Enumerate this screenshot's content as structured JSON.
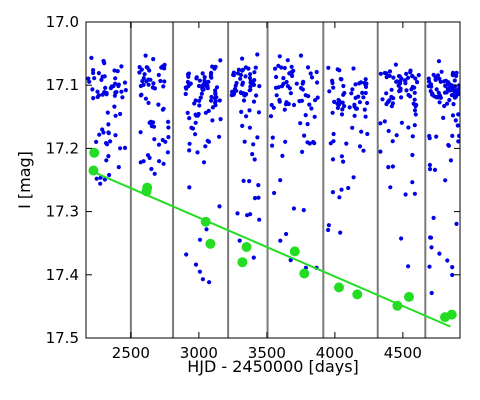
{
  "chart_data": {
    "type": "scatter",
    "xlabel": "HJD - 2450000 [days]",
    "ylabel": "I [mag]",
    "xlim": [
      2170,
      4920
    ],
    "ylim": [
      17.5,
      17.0
    ],
    "y_inverted": true,
    "grid": false,
    "legend": "none",
    "x_ticks": [
      2500,
      3000,
      3500,
      4000,
      4500
    ],
    "x_tick_labels": [
      "2500",
      "3000",
      "3500",
      "4000",
      "4500"
    ],
    "y_ticks": [
      17.0,
      17.1,
      17.2,
      17.3,
      17.4,
      17.5
    ],
    "y_tick_labels": [
      "17.0",
      "17.1",
      "17.2",
      "17.3",
      "17.4",
      "17.5"
    ],
    "season_boundaries": [
      2500,
      2810,
      3215,
      3505,
      3915,
      4315,
      4665
    ],
    "colors": {
      "photometry": "#0000e6",
      "minima": "#22dd22",
      "trend": "#22dd22",
      "boundary": "#7a7a7a"
    },
    "seasons": [
      {
        "x_start": 2185,
        "x_end": 2470,
        "n_points": 65,
        "core_min": 17.07,
        "core_max": 17.12,
        "tail_max": 17.26
      },
      {
        "x_start": 2560,
        "x_end": 2780,
        "n_points": 60,
        "core_min": 17.07,
        "core_max": 17.12,
        "tail_max": 17.25
      },
      {
        "x_start": 2900,
        "x_end": 3160,
        "n_points": 85,
        "core_min": 17.08,
        "core_max": 17.13,
        "tail_max": 17.43
      },
      {
        "x_start": 3240,
        "x_end": 3450,
        "n_points": 70,
        "core_min": 17.07,
        "core_max": 17.12,
        "tail_max": 17.38
      },
      {
        "x_start": 3530,
        "x_end": 3880,
        "n_points": 75,
        "core_min": 17.07,
        "core_max": 17.13,
        "tail_max": 17.45
      },
      {
        "x_start": 3950,
        "x_end": 4240,
        "n_points": 70,
        "core_min": 17.09,
        "core_max": 17.14,
        "tail_max": 17.35
      },
      {
        "x_start": 4330,
        "x_end": 4620,
        "n_points": 75,
        "core_min": 17.08,
        "core_max": 17.13,
        "tail_max": 17.44
      },
      {
        "x_start": 4690,
        "x_end": 4915,
        "n_points": 95,
        "core_min": 17.08,
        "core_max": 17.12,
        "tail_max": 17.44
      }
    ],
    "minima": [
      {
        "x": 2230,
        "y": 17.207
      },
      {
        "x": 2225,
        "y": 17.235
      },
      {
        "x": 2620,
        "y": 17.262
      },
      {
        "x": 2615,
        "y": 17.268
      },
      {
        "x": 3050,
        "y": 17.316
      },
      {
        "x": 3085,
        "y": 17.351
      },
      {
        "x": 3320,
        "y": 17.38
      },
      {
        "x": 3350,
        "y": 17.356
      },
      {
        "x": 3705,
        "y": 17.363
      },
      {
        "x": 3775,
        "y": 17.398
      },
      {
        "x": 4030,
        "y": 17.42
      },
      {
        "x": 4165,
        "y": 17.431
      },
      {
        "x": 4460,
        "y": 17.449
      },
      {
        "x": 4545,
        "y": 17.435
      },
      {
        "x": 4810,
        "y": 17.467
      },
      {
        "x": 4860,
        "y": 17.463
      }
    ],
    "trend_line": {
      "x": [
        2200,
        4850
      ],
      "y": [
        17.235,
        17.482
      ]
    }
  }
}
